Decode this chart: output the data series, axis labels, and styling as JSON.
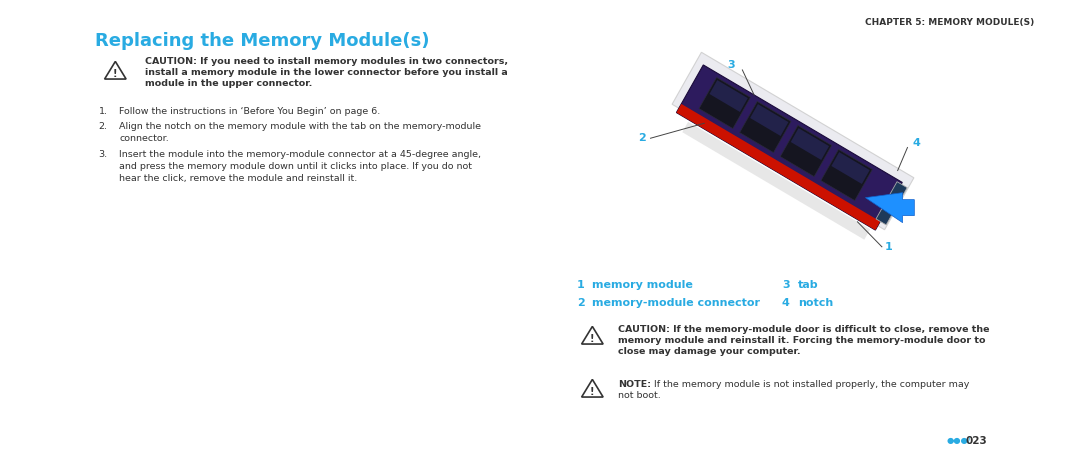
{
  "bg_color": "#ffffff",
  "chapter_header": "CHAPTER 5: MEMORY MODULE(S)",
  "title": "Replacing the Memory Module(s)",
  "title_color": "#29abe2",
  "title_fontsize": 13,
  "chapter_fontsize": 6.5,
  "chapter_color": "#333333",
  "body_color": "#333333",
  "cyan_color": "#29abe2",
  "caution_bold_text1_line1": "CAUTION: If you need to install memory modules in two connectors,",
  "caution_bold_text1_line2": "install a memory module in the lower connector before you install a",
  "caution_bold_text1_line3": "module in the upper connector.",
  "steps": [
    "Follow the instructions in ‘Before You Begin’ on page 6.",
    "Align the notch on the memory module with the tab on the memory-module\nconnector.",
    "Insert the module into the memory-module connector at a 45-degree angle,\nand press the memory module down until it clicks into place. If you do not\nhear the click, remove the module and reinstall it."
  ],
  "legend_items": [
    {
      "num": "1",
      "label": "memory module"
    },
    {
      "num": "2",
      "label": "memory-module connector"
    },
    {
      "num": "3",
      "label": "tab"
    },
    {
      "num": "4",
      "label": "notch"
    }
  ],
  "caution2_line1": "CAUTION: If the memory-module door is difficult to close, remove the",
  "caution2_line2": "memory module and reinstall it. Forcing the memory-module door to",
  "caution2_line3": "close may damage your computer.",
  "note_line1": "NOTE: If the memory module is not installed properly, the computer may",
  "note_line2": "not boot.",
  "page_num": "023"
}
